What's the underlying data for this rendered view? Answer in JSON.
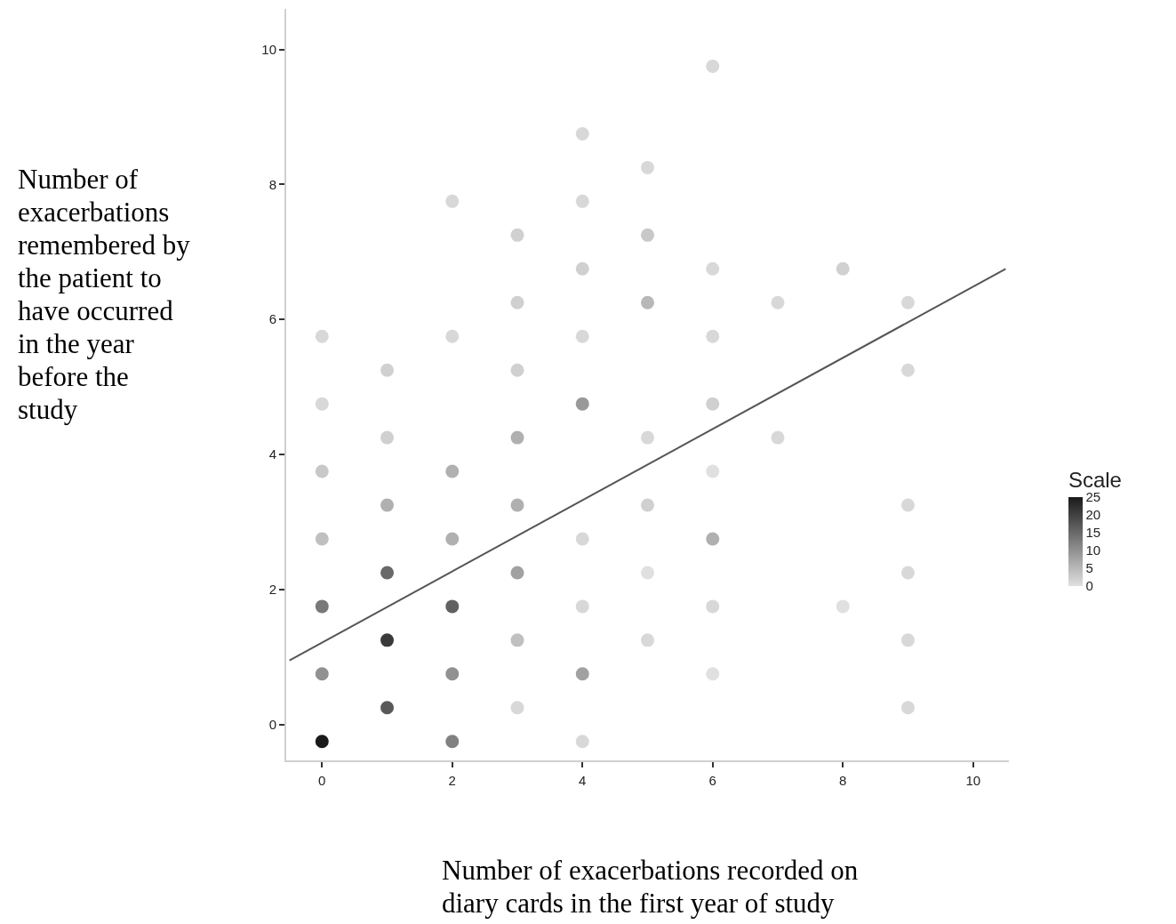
{
  "chart_data": {
    "type": "scatter",
    "xlabel": "Number of exacerbations recorded on diary cards in the first year of study",
    "ylabel": "Number of exacerbations remembered by the patient to have occurred in the year before the study",
    "clabel": "Scale",
    "clim": [
      0,
      25
    ],
    "cticks": [
      25,
      20,
      15,
      10,
      5,
      0
    ],
    "xlim": [
      -0.55,
      10.55
    ],
    "xticks": [
      0,
      2,
      4,
      6,
      8,
      10
    ],
    "ylim": [
      -0.53,
      10.6
    ],
    "yticks": [
      0,
      2,
      4,
      6,
      8,
      10
    ],
    "grid": false,
    "marker": "circle",
    "series": [
      {
        "type": "scatter",
        "x": [
          0,
          0,
          0,
          0,
          0,
          0,
          0,
          1,
          1,
          1,
          1,
          1,
          1,
          2,
          2,
          2,
          2,
          2,
          2,
          2,
          3,
          3,
          3,
          3,
          3,
          3,
          3,
          3,
          4,
          4,
          4,
          4,
          4,
          4,
          4,
          4,
          4,
          5,
          5,
          5,
          5,
          5,
          5,
          5,
          6,
          6,
          6,
          6,
          6,
          6,
          6,
          6,
          7,
          7,
          8,
          8,
          9,
          9,
          9,
          9,
          9,
          9
        ],
        "values": [
          -0.25,
          0.75,
          1.75,
          2.75,
          3.75,
          4.75,
          5.75,
          0.25,
          1.25,
          2.25,
          3.25,
          4.25,
          5.25,
          -0.25,
          0.75,
          1.75,
          2.75,
          3.75,
          5.75,
          7.75,
          0.25,
          1.25,
          2.25,
          3.25,
          4.25,
          5.25,
          6.25,
          7.25,
          -0.25,
          0.75,
          1.75,
          2.75,
          4.75,
          5.75,
          6.75,
          7.75,
          8.75,
          1.25,
          2.25,
          3.25,
          4.25,
          6.25,
          7.25,
          8.25,
          0.75,
          1.75,
          2.75,
          3.75,
          4.75,
          5.75,
          6.75,
          9.75,
          4.25,
          6.25,
          1.75,
          6.75,
          0.25,
          1.25,
          2.25,
          3.25,
          5.25,
          6.25
        ],
        "colors": [
          "#1a1a1a",
          "#919191",
          "#797979",
          "#c0c0c0",
          "#c8c8c8",
          "#d8d8d8",
          "#d8d8d8",
          "#595959",
          "#3a3a3a",
          "#696969",
          "#b0b0b0",
          "#d0d0d0",
          "#d0d0d0",
          "#818181",
          "#919191",
          "#616161",
          "#b0b0b0",
          "#b0b0b0",
          "#d8d8d8",
          "#d8d8d8",
          "#d8d8d8",
          "#c0c0c0",
          "#a1a1a1",
          "#b0b0b0",
          "#b0b0b0",
          "#d0d0d0",
          "#d0d0d0",
          "#d0d0d0",
          "#d8d8d8",
          "#a1a1a1",
          "#d8d8d8",
          "#d8d8d8",
          "#999999",
          "#d8d8d8",
          "#d0d0d0",
          "#d8d8d8",
          "#d8d8d8",
          "#d8d8d8",
          "#e0e0e0",
          "#d0d0d0",
          "#d8d8d8",
          "#b8b8b8",
          "#c8c8c8",
          "#d8d8d8",
          "#e0e0e0",
          "#d8d8d8",
          "#b0b0b0",
          "#e0e0e0",
          "#d0d0d0",
          "#d8d8d8",
          "#d8d8d8",
          "#d8d8d8",
          "#d8d8d8",
          "#d8d8d8",
          "#e0e0e0",
          "#d0d0d0",
          "#d8d8d8",
          "#d8d8d8",
          "#d8d8d8",
          "#d8d8d8",
          "#d8d8d8",
          "#d8d8d8"
        ]
      },
      {
        "type": "line",
        "x": [
          -0.5,
          10.5
        ],
        "values": [
          0.95,
          6.75
        ],
        "color": "#555555",
        "line_style": "solid",
        "marker": "none"
      }
    ]
  }
}
